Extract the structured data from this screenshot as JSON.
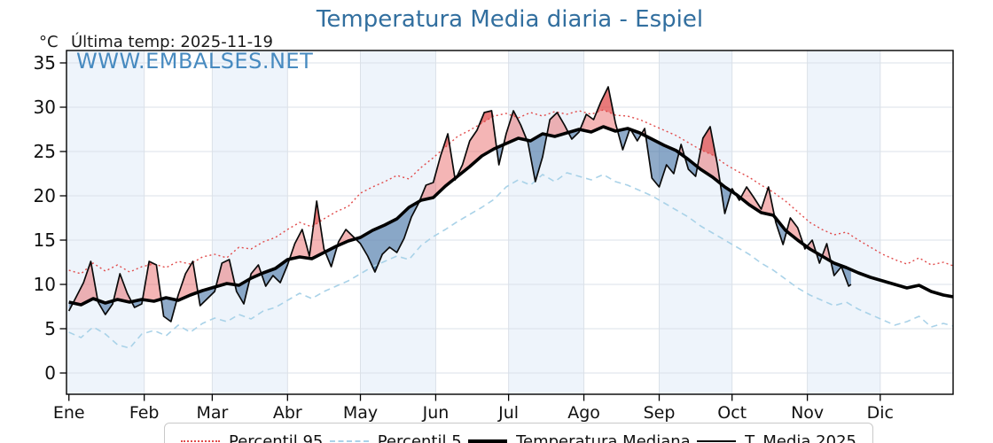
{
  "title": "Temperatura Media diaria - Espiel",
  "annotation": "Última temp: 2025-11-19",
  "y_axis_unit": "°C",
  "watermark": "WWW.EMBALSES.NET",
  "colors": {
    "title": "#326f9f",
    "watermark": "#3f85bd",
    "band": "#eef4fb",
    "grid": "#dbe1e8",
    "axis": "#000000",
    "fill_above_median": "rgba(230,90,90,0.45)",
    "fill_above_p95": "rgba(220,50,50,0.45)",
    "fill_below_median": "rgba(70,115,165,0.6)",
    "fill_below_p5": "rgba(40,90,140,0.5)"
  },
  "legend": {
    "items": [
      {
        "label": "Percentil 95",
        "style": "dotted-red"
      },
      {
        "label": "Percentil 5",
        "style": "dashed-lightblue"
      },
      {
        "label": "Temperatura Mediana",
        "style": "solid-black-thick"
      },
      {
        "label": "T. Media 2025",
        "style": "solid-black-thin"
      }
    ]
  },
  "chart_data": {
    "type": "line",
    "title": "Temperatura Media diaria - Espiel",
    "ylabel": "°C",
    "ylim": [
      -2.4,
      36.4
    ],
    "yticks": [
      0,
      5,
      10,
      15,
      20,
      25,
      30,
      35
    ],
    "days_in_year": 365,
    "month_tick_labels": [
      "Ene",
      "Feb",
      "Mar",
      "Abr",
      "May",
      "Jun",
      "Jul",
      "Ago",
      "Sep",
      "Oct",
      "Nov",
      "Dic"
    ],
    "month_start_days": [
      1,
      32,
      60,
      91,
      121,
      152,
      182,
      213,
      244,
      274,
      305,
      335
    ],
    "shaded_month_indices": [
      0,
      2,
      4,
      6,
      8,
      10
    ],
    "grid": true,
    "legend_position": "bottom",
    "series": [
      {
        "name": "Percentil 95",
        "style": "dotted",
        "color": "#e14b4b",
        "width": 1.4,
        "x": [
          1,
          6,
          11,
          16,
          21,
          26,
          31,
          36,
          41,
          46,
          51,
          56,
          61,
          66,
          71,
          76,
          81,
          86,
          91,
          96,
          101,
          106,
          111,
          116,
          121,
          126,
          131,
          136,
          141,
          146,
          151,
          156,
          161,
          166,
          171,
          176,
          181,
          186,
          191,
          196,
          201,
          206,
          211,
          216,
          221,
          226,
          231,
          236,
          241,
          246,
          251,
          256,
          261,
          266,
          271,
          276,
          281,
          286,
          291,
          296,
          301,
          306,
          311,
          316,
          321,
          326,
          331,
          336,
          341,
          346,
          351,
          356,
          361,
          365
        ],
        "y": [
          11.6,
          11.2,
          12.4,
          11.5,
          12.2,
          11.4,
          12.0,
          12.3,
          11.9,
          12.6,
          12.3,
          13.1,
          13.4,
          13.0,
          14.2,
          14.0,
          14.8,
          15.3,
          16.2,
          17.0,
          16.5,
          17.4,
          18.2,
          18.8,
          20.3,
          21.0,
          21.6,
          22.3,
          21.9,
          23.2,
          24.3,
          25.5,
          26.7,
          27.4,
          28.2,
          29.0,
          29.3,
          28.8,
          29.4,
          29.0,
          29.5,
          29.2,
          29.6,
          29.2,
          29.7,
          29.1,
          29.0,
          28.6,
          28.0,
          27.4,
          26.8,
          26.0,
          25.2,
          24.6,
          23.6,
          22.8,
          22.1,
          21.2,
          20.4,
          19.4,
          18.2,
          17.0,
          16.2,
          15.6,
          15.9,
          15.0,
          14.2,
          13.4,
          12.8,
          12.3,
          13.0,
          12.2,
          12.5,
          12.1
        ]
      },
      {
        "name": "Percentil 5",
        "style": "dashed",
        "color": "#a9d2e8",
        "width": 1.6,
        "x": [
          1,
          6,
          11,
          16,
          21,
          26,
          31,
          36,
          41,
          46,
          51,
          56,
          61,
          66,
          71,
          76,
          81,
          86,
          91,
          96,
          101,
          106,
          111,
          116,
          121,
          126,
          131,
          136,
          141,
          146,
          151,
          156,
          161,
          166,
          171,
          176,
          181,
          186,
          191,
          196,
          201,
          206,
          211,
          216,
          221,
          226,
          231,
          236,
          241,
          246,
          251,
          256,
          261,
          266,
          271,
          276,
          281,
          286,
          291,
          296,
          301,
          306,
          311,
          316,
          321,
          326,
          331,
          336,
          341,
          346,
          351,
          356,
          361,
          365
        ],
        "y": [
          4.6,
          4.0,
          5.2,
          4.4,
          3.2,
          2.8,
          4.4,
          4.8,
          4.2,
          5.4,
          4.6,
          5.6,
          6.2,
          5.8,
          6.6,
          6.1,
          7.0,
          7.4,
          8.2,
          9.0,
          8.4,
          9.2,
          9.8,
          10.4,
          11.2,
          12.0,
          12.6,
          13.2,
          12.8,
          14.4,
          15.4,
          16.2,
          17.1,
          17.9,
          18.7,
          19.6,
          21.0,
          21.8,
          21.2,
          22.4,
          21.6,
          22.6,
          22.2,
          21.8,
          22.4,
          21.6,
          21.2,
          20.6,
          20.0,
          19.2,
          18.4,
          17.6,
          16.6,
          15.8,
          15.0,
          14.2,
          13.4,
          12.4,
          11.6,
          10.6,
          9.6,
          8.8,
          8.2,
          7.6,
          8.0,
          7.2,
          6.6,
          6.0,
          5.4,
          5.8,
          6.4,
          5.2,
          5.6,
          5.3
        ]
      },
      {
        "name": "Temperatura Mediana",
        "style": "solid",
        "color": "#000000",
        "width": 3.6,
        "x": [
          1,
          6,
          11,
          16,
          21,
          26,
          31,
          36,
          41,
          46,
          51,
          56,
          61,
          66,
          71,
          76,
          81,
          86,
          91,
          96,
          101,
          106,
          111,
          116,
          121,
          126,
          131,
          136,
          141,
          146,
          151,
          156,
          161,
          166,
          171,
          176,
          181,
          186,
          191,
          196,
          201,
          206,
          211,
          216,
          221,
          226,
          231,
          236,
          241,
          246,
          251,
          256,
          261,
          266,
          271,
          276,
          281,
          286,
          291,
          296,
          301,
          306,
          311,
          316,
          321,
          326,
          331,
          336,
          341,
          346,
          351,
          356,
          361,
          365
        ],
        "y": [
          8.0,
          7.7,
          8.4,
          7.9,
          8.3,
          8.0,
          8.3,
          8.1,
          8.5,
          8.2,
          8.8,
          9.3,
          9.7,
          10.1,
          9.9,
          10.7,
          11.3,
          11.8,
          12.8,
          13.1,
          12.9,
          13.6,
          14.3,
          14.9,
          15.3,
          16.1,
          16.7,
          17.4,
          18.7,
          19.5,
          19.8,
          21.1,
          22.2,
          23.3,
          24.5,
          25.3,
          25.9,
          26.5,
          26.2,
          27.0,
          26.7,
          27.1,
          27.5,
          27.2,
          27.8,
          27.3,
          27.6,
          27.1,
          26.4,
          25.7,
          25.1,
          24.1,
          23.0,
          22.1,
          21.0,
          20.1,
          19.0,
          18.1,
          17.8,
          16.1,
          15.0,
          14.0,
          13.2,
          12.4,
          11.9,
          11.3,
          10.8,
          10.4,
          10.0,
          9.6,
          9.9,
          9.2,
          8.8,
          8.6
        ]
      },
      {
        "name": "T. Media 2025",
        "style": "solid",
        "color": "#0a0a0a",
        "width": 1.7,
        "x": [
          1,
          4,
          7,
          10,
          13,
          16,
          19,
          22,
          25,
          28,
          31,
          34,
          37,
          40,
          43,
          46,
          49,
          52,
          55,
          58,
          61,
          64,
          67,
          70,
          73,
          76,
          79,
          82,
          85,
          88,
          91,
          94,
          97,
          100,
          103,
          106,
          109,
          112,
          115,
          118,
          121,
          124,
          127,
          130,
          133,
          136,
          139,
          142,
          145,
          148,
          151,
          154,
          157,
          160,
          163,
          166,
          169,
          172,
          175,
          178,
          181,
          184,
          187,
          190,
          193,
          196,
          199,
          202,
          205,
          208,
          211,
          214,
          217,
          220,
          223,
          226,
          229,
          232,
          235,
          238,
          241,
          244,
          247,
          250,
          253,
          256,
          259,
          262,
          265,
          268,
          271,
          274,
          277,
          280,
          283,
          286,
          289,
          292,
          295,
          298,
          301,
          304,
          307,
          310,
          313,
          316,
          319,
          322,
          323
        ],
        "y": [
          7.0,
          8.6,
          10.2,
          12.6,
          8.0,
          6.6,
          7.8,
          11.2,
          9.0,
          7.4,
          7.8,
          12.6,
          12.2,
          6.4,
          5.8,
          8.8,
          11.2,
          12.6,
          7.6,
          8.4,
          9.2,
          12.4,
          12.8,
          9.2,
          7.8,
          11.2,
          12.2,
          9.8,
          11.0,
          10.2,
          12.2,
          14.6,
          16.2,
          13.2,
          19.4,
          14.0,
          12.0,
          14.8,
          16.2,
          15.4,
          14.6,
          13.2,
          11.4,
          13.4,
          14.2,
          13.6,
          15.2,
          17.6,
          19.2,
          21.2,
          21.5,
          24.5,
          27.0,
          21.8,
          23.5,
          26.2,
          27.4,
          29.4,
          29.6,
          23.5,
          27.0,
          29.6,
          28.0,
          26.0,
          21.6,
          24.4,
          28.6,
          29.4,
          28.0,
          26.4,
          27.2,
          29.2,
          28.6,
          30.6,
          32.3,
          28.2,
          25.2,
          27.6,
          26.2,
          27.6,
          22.0,
          21.0,
          23.5,
          22.5,
          25.8,
          23.0,
          22.2,
          26.5,
          27.8,
          23.5,
          18.0,
          20.8,
          19.5,
          21.0,
          19.8,
          18.5,
          21.0,
          17.0,
          14.5,
          17.5,
          16.4,
          14.0,
          15.0,
          12.4,
          14.6,
          11.0,
          12.0,
          9.8,
          10.0
        ]
      }
    ],
    "fills": {
      "between": [
        "T. Media 2025",
        "Temperatura Mediana"
      ],
      "above_median_color": "rgba(230,90,90,0.45)",
      "above_p95_color": "rgba(220,50,50,0.45)",
      "below_median_color": "rgba(70,115,165,0.6)",
      "below_p5_color": "rgba(40,90,140,0.5)"
    }
  }
}
